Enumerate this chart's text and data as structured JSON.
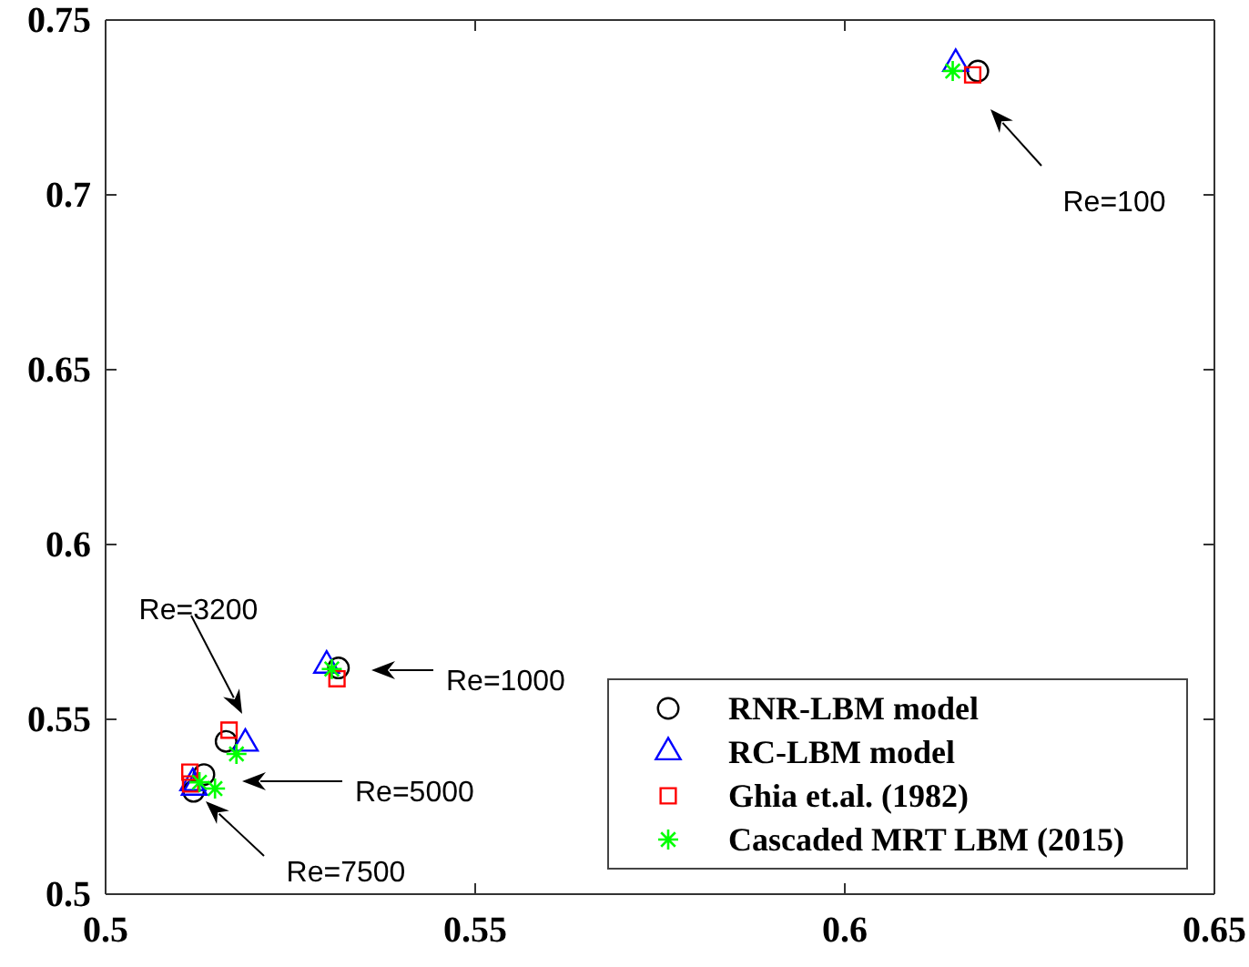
{
  "chart_data": {
    "type": "scatter",
    "xlim": [
      0.5,
      0.65
    ],
    "ylim": [
      0.5,
      0.75
    ],
    "xticks": [
      0.5,
      0.55,
      0.6,
      0.65
    ],
    "yticks": [
      0.5,
      0.55,
      0.6,
      0.65,
      0.7,
      0.75
    ],
    "grid": false,
    "legend": "bottom right",
    "series": [
      {
        "name": "RNR-LBM model",
        "color": "#000000",
        "marker": "circle",
        "x": [
          0.618,
          0.5315,
          0.5163,
          0.5133,
          0.5119
        ],
        "values": [
          0.7354,
          0.5647,
          0.5437,
          0.5342,
          0.5294
        ]
      },
      {
        "name": "RC-LBM model",
        "color": "#0000ff",
        "marker": "triangle",
        "x": [
          0.615,
          0.5299,
          0.5189,
          0.5118,
          0.512
        ],
        "values": [
          0.7375,
          0.5654,
          0.5431,
          0.5318,
          0.5305
        ]
      },
      {
        "name": "Ghia et.al. (1982)",
        "color": "#ff0000",
        "marker": "square",
        "x": [
          0.6173,
          0.5313,
          0.5167,
          0.5114,
          0.5115
        ],
        "values": [
          0.7343,
          0.5616,
          0.5469,
          0.5349,
          0.5315
        ]
      },
      {
        "name": "Cascaded MRT LBM (2015)",
        "color": "#00ff00",
        "marker": "cross",
        "x": [
          0.6146,
          0.5306,
          0.5177,
          0.5148,
          0.5127
        ],
        "values": [
          0.7354,
          0.5644,
          0.5401,
          0.5302,
          0.532
        ]
      }
    ],
    "annotations": [
      "Re=100",
      "Re=1000",
      "Re=3200",
      "Re=5000",
      "Re=7500"
    ]
  }
}
